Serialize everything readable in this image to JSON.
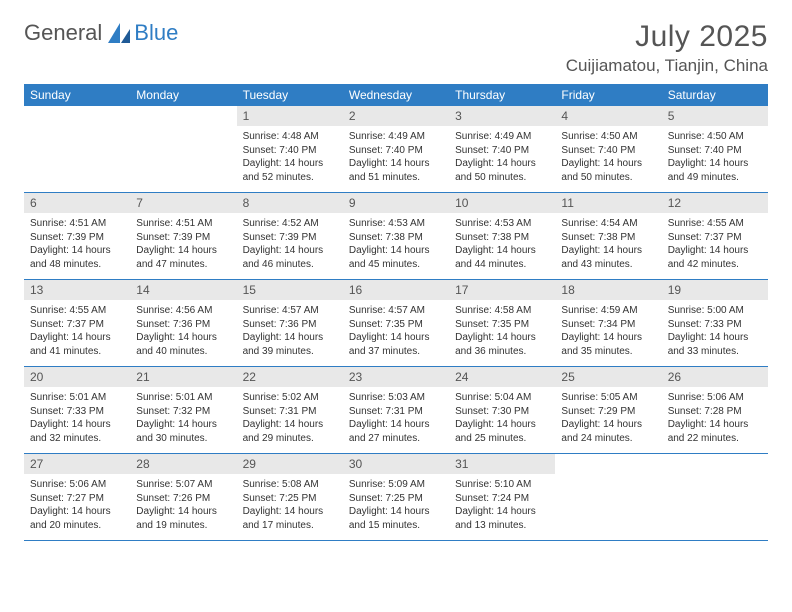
{
  "brand": {
    "word1": "General",
    "word2": "Blue"
  },
  "title": "July 2025",
  "location": "Cuijiamatou, Tianjin, China",
  "colors": {
    "header_bg": "#2f7dc4",
    "header_text": "#ffffff",
    "daynum_bg": "#e8e8e8",
    "text": "#333333",
    "rule": "#2f7dc4"
  },
  "weekdays": [
    "Sunday",
    "Monday",
    "Tuesday",
    "Wednesday",
    "Thursday",
    "Friday",
    "Saturday"
  ],
  "grid": {
    "first_weekday_index": 2,
    "days_in_month": 31
  },
  "days": [
    {
      "n": 1,
      "sunrise": "4:48 AM",
      "sunset": "7:40 PM",
      "daylight": "14 hours and 52 minutes."
    },
    {
      "n": 2,
      "sunrise": "4:49 AM",
      "sunset": "7:40 PM",
      "daylight": "14 hours and 51 minutes."
    },
    {
      "n": 3,
      "sunrise": "4:49 AM",
      "sunset": "7:40 PM",
      "daylight": "14 hours and 50 minutes."
    },
    {
      "n": 4,
      "sunrise": "4:50 AM",
      "sunset": "7:40 PM",
      "daylight": "14 hours and 50 minutes."
    },
    {
      "n": 5,
      "sunrise": "4:50 AM",
      "sunset": "7:40 PM",
      "daylight": "14 hours and 49 minutes."
    },
    {
      "n": 6,
      "sunrise": "4:51 AM",
      "sunset": "7:39 PM",
      "daylight": "14 hours and 48 minutes."
    },
    {
      "n": 7,
      "sunrise": "4:51 AM",
      "sunset": "7:39 PM",
      "daylight": "14 hours and 47 minutes."
    },
    {
      "n": 8,
      "sunrise": "4:52 AM",
      "sunset": "7:39 PM",
      "daylight": "14 hours and 46 minutes."
    },
    {
      "n": 9,
      "sunrise": "4:53 AM",
      "sunset": "7:38 PM",
      "daylight": "14 hours and 45 minutes."
    },
    {
      "n": 10,
      "sunrise": "4:53 AM",
      "sunset": "7:38 PM",
      "daylight": "14 hours and 44 minutes."
    },
    {
      "n": 11,
      "sunrise": "4:54 AM",
      "sunset": "7:38 PM",
      "daylight": "14 hours and 43 minutes."
    },
    {
      "n": 12,
      "sunrise": "4:55 AM",
      "sunset": "7:37 PM",
      "daylight": "14 hours and 42 minutes."
    },
    {
      "n": 13,
      "sunrise": "4:55 AM",
      "sunset": "7:37 PM",
      "daylight": "14 hours and 41 minutes."
    },
    {
      "n": 14,
      "sunrise": "4:56 AM",
      "sunset": "7:36 PM",
      "daylight": "14 hours and 40 minutes."
    },
    {
      "n": 15,
      "sunrise": "4:57 AM",
      "sunset": "7:36 PM",
      "daylight": "14 hours and 39 minutes."
    },
    {
      "n": 16,
      "sunrise": "4:57 AM",
      "sunset": "7:35 PM",
      "daylight": "14 hours and 37 minutes."
    },
    {
      "n": 17,
      "sunrise": "4:58 AM",
      "sunset": "7:35 PM",
      "daylight": "14 hours and 36 minutes."
    },
    {
      "n": 18,
      "sunrise": "4:59 AM",
      "sunset": "7:34 PM",
      "daylight": "14 hours and 35 minutes."
    },
    {
      "n": 19,
      "sunrise": "5:00 AM",
      "sunset": "7:33 PM",
      "daylight": "14 hours and 33 minutes."
    },
    {
      "n": 20,
      "sunrise": "5:01 AM",
      "sunset": "7:33 PM",
      "daylight": "14 hours and 32 minutes."
    },
    {
      "n": 21,
      "sunrise": "5:01 AM",
      "sunset": "7:32 PM",
      "daylight": "14 hours and 30 minutes."
    },
    {
      "n": 22,
      "sunrise": "5:02 AM",
      "sunset": "7:31 PM",
      "daylight": "14 hours and 29 minutes."
    },
    {
      "n": 23,
      "sunrise": "5:03 AM",
      "sunset": "7:31 PM",
      "daylight": "14 hours and 27 minutes."
    },
    {
      "n": 24,
      "sunrise": "5:04 AM",
      "sunset": "7:30 PM",
      "daylight": "14 hours and 25 minutes."
    },
    {
      "n": 25,
      "sunrise": "5:05 AM",
      "sunset": "7:29 PM",
      "daylight": "14 hours and 24 minutes."
    },
    {
      "n": 26,
      "sunrise": "5:06 AM",
      "sunset": "7:28 PM",
      "daylight": "14 hours and 22 minutes."
    },
    {
      "n": 27,
      "sunrise": "5:06 AM",
      "sunset": "7:27 PM",
      "daylight": "14 hours and 20 minutes."
    },
    {
      "n": 28,
      "sunrise": "5:07 AM",
      "sunset": "7:26 PM",
      "daylight": "14 hours and 19 minutes."
    },
    {
      "n": 29,
      "sunrise": "5:08 AM",
      "sunset": "7:25 PM",
      "daylight": "14 hours and 17 minutes."
    },
    {
      "n": 30,
      "sunrise": "5:09 AM",
      "sunset": "7:25 PM",
      "daylight": "14 hours and 15 minutes."
    },
    {
      "n": 31,
      "sunrise": "5:10 AM",
      "sunset": "7:24 PM",
      "daylight": "14 hours and 13 minutes."
    }
  ],
  "labels": {
    "sunrise_prefix": "Sunrise: ",
    "sunset_prefix": "Sunset: ",
    "daylight_prefix": "Daylight: "
  }
}
